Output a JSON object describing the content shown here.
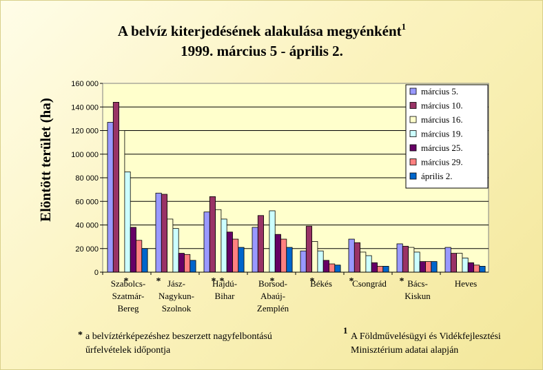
{
  "title": "A belvíz kiterjedésének alakulása megyénként",
  "title_sup": "1",
  "subtitle": "1999. március 5 - április 2.",
  "chart_data": {
    "type": "bar",
    "ylabel": "Elöntött terület (ha)",
    "ylim": [
      0,
      160000
    ],
    "yticks": [
      0,
      20000,
      40000,
      60000,
      80000,
      100000,
      120000,
      140000,
      160000
    ],
    "ytick_labels": [
      "0",
      "20 000",
      "40 000",
      "60 000",
      "80 000",
      "100 000",
      "120 000",
      "140 000",
      "160 000"
    ],
    "grid": true,
    "legend_position": "top-right",
    "categories": [
      [
        "Szabolcs-",
        "Szatmár-",
        "Bereg"
      ],
      [
        "Jász-",
        "Nagykun-",
        "Szolnok"
      ],
      [
        "Hajdú-",
        "Bihar"
      ],
      [
        "Borsod-",
        "Abaúj-",
        "Zemplén"
      ],
      [
        "Békés"
      ],
      [
        "Csongrád"
      ],
      [
        "Bács-",
        "Kiskun"
      ],
      [
        "Heves"
      ]
    ],
    "series": [
      {
        "name": "március 5.",
        "color": "#9999ff",
        "values": [
          127000,
          67000,
          51000,
          38000,
          18000,
          28000,
          24000,
          21000
        ]
      },
      {
        "name": "március 10.",
        "color": "#993366",
        "values": [
          144000,
          66000,
          64000,
          48000,
          39000,
          25000,
          22000,
          16000
        ]
      },
      {
        "name": "március 16.",
        "color": "#ffffcc",
        "values": [
          120000,
          45000,
          53000,
          0,
          26000,
          17000,
          21000,
          16000
        ]
      },
      {
        "name": "március 19.",
        "color": "#ccffff",
        "values": [
          85000,
          37000,
          45000,
          52000,
          18000,
          14000,
          17000,
          12000
        ]
      },
      {
        "name": "március 25.",
        "color": "#660066",
        "values": [
          38000,
          16000,
          34000,
          32000,
          10000,
          8000,
          9000,
          8000
        ]
      },
      {
        "name": "március 29.",
        "color": "#ff8080",
        "values": [
          27000,
          15000,
          28000,
          28000,
          7000,
          5000,
          9000,
          6000
        ]
      },
      {
        "name": "április 2.",
        "color": "#0066cc",
        "values": [
          20000,
          10000,
          21000,
          21000,
          6000,
          5000,
          9000,
          5000
        ]
      }
    ],
    "asterisks": [
      {
        "category": 0,
        "text": "*"
      },
      {
        "category": 1,
        "text": "*"
      },
      {
        "category": 2,
        "text": "*"
      },
      {
        "category": 2,
        "text": "*"
      },
      {
        "category": 3,
        "text": "*"
      },
      {
        "category": 4,
        "text": "*"
      },
      {
        "category": 5,
        "text": "*"
      },
      {
        "category": 6,
        "text": "*"
      }
    ]
  },
  "notes": {
    "left_marker": "*",
    "left_line1": "a belvíztérképezéshez beszerzett nagyfelbontású",
    "left_line2": "űrfelvételek időpontja",
    "right_marker": "1",
    "right_line1": "A Földművelésügyi és Vidékfejlesztési",
    "right_line2": "Minisztérium adatai alapján"
  }
}
